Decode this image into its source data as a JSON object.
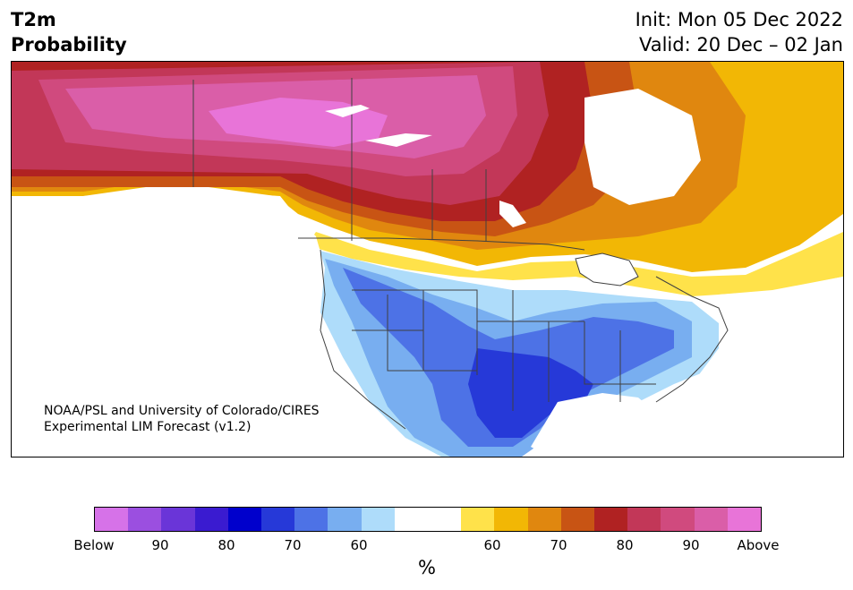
{
  "header": {
    "title_line1": "T2m",
    "title_line2": "Probability",
    "init_line": "Init: Mon 05 Dec 2022",
    "valid_line": "Valid: 20 Dec – 02 Jan"
  },
  "credit": {
    "line1": "NOAA/PSL and University of Colorado/CIRES",
    "line2": "Experimental LIM Forecast (v1.2)"
  },
  "colorbar": {
    "colors": [
      "#d672e8",
      "#9b4fe0",
      "#6a35d8",
      "#3a1bd0",
      "#0000cc",
      "#2639d8",
      "#4d72e6",
      "#78aef0",
      "#aedcfa",
      "#ffffff",
      "#ffffff",
      "#ffe24a",
      "#f2b705",
      "#e0870f",
      "#c85414",
      "#b02222",
      "#c23758",
      "#d04a7e",
      "#da5ea8",
      "#e874d8"
    ],
    "labels": [
      "Below",
      "90",
      "80",
      "70",
      "60",
      "60",
      "70",
      "80",
      "90",
      "Above"
    ],
    "units": "%"
  },
  "map": {
    "colors": {
      "above_extreme": "#e874d8",
      "above_90": "#da5ea8",
      "above_85": "#d04a7e",
      "above_80": "#c23758",
      "above_75": "#b02222",
      "above_70": "#c85414",
      "above_65": "#e0870f",
      "above_60": "#f2b705",
      "above_55": "#ffe24a",
      "below_55": "#aedcfa",
      "below_60": "#78aef0",
      "below_65": "#4d72e6",
      "below_70": "#2639d8",
      "ocean": "#ffffff",
      "borders": "#404040"
    }
  }
}
